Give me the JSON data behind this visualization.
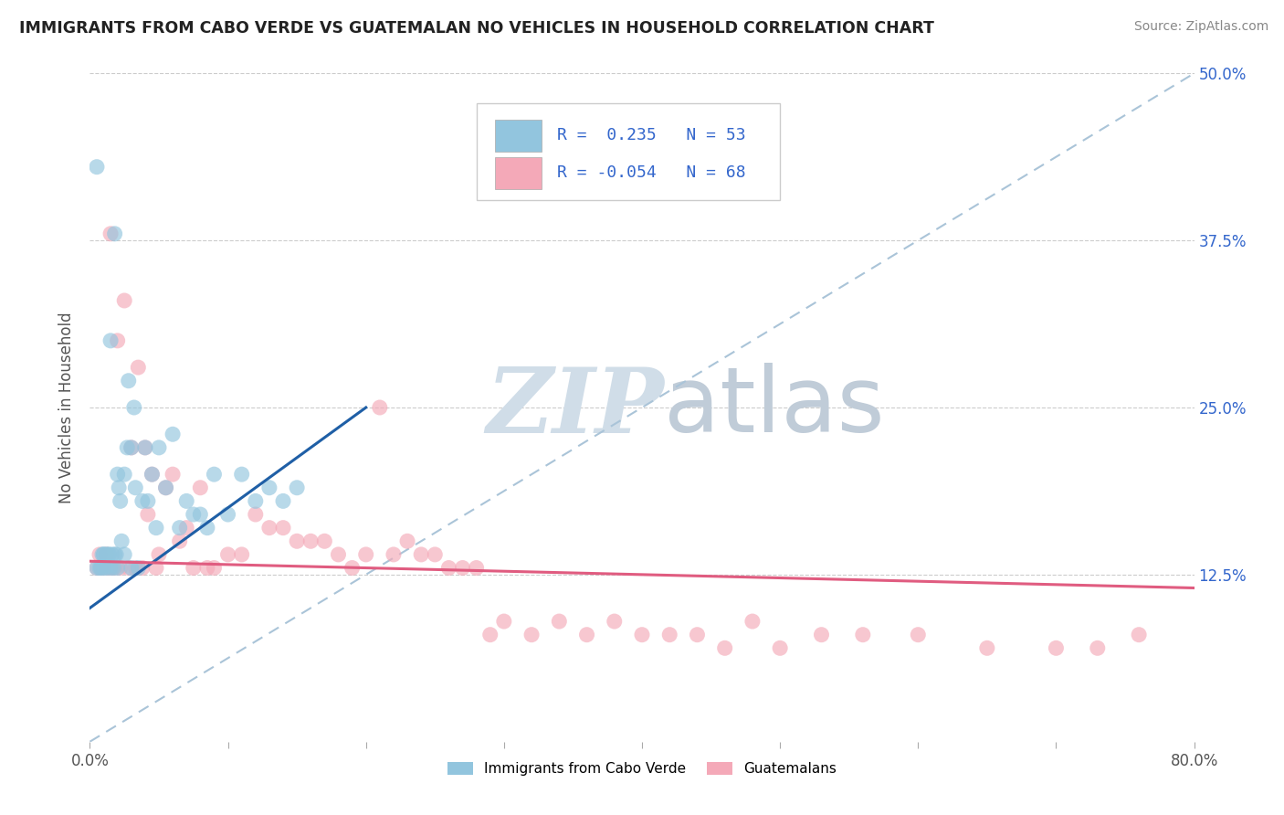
{
  "title": "IMMIGRANTS FROM CABO VERDE VS GUATEMALAN NO VEHICLES IN HOUSEHOLD CORRELATION CHART",
  "source": "Source: ZipAtlas.com",
  "ylabel": "No Vehicles in Household",
  "yticks": [
    0.0,
    0.125,
    0.25,
    0.375,
    0.5
  ],
  "ytick_labels": [
    "",
    "12.5%",
    "25.0%",
    "37.5%",
    "50.0%"
  ],
  "xlim": [
    0.0,
    0.8
  ],
  "ylim": [
    0.0,
    0.5
  ],
  "blue_R": 0.235,
  "blue_N": 53,
  "pink_R": -0.054,
  "pink_N": 68,
  "blue_color": "#92c5de",
  "pink_color": "#f4a9b8",
  "blue_line_color": "#1f5fa6",
  "pink_line_color": "#e05c80",
  "watermark_color": "#d0dde8",
  "legend_label_blue": "Immigrants from Cabo Verde",
  "legend_label_pink": "Guatemalans",
  "blue_scatter_x": [
    0.005,
    0.005,
    0.007,
    0.008,
    0.009,
    0.01,
    0.01,
    0.01,
    0.012,
    0.012,
    0.013,
    0.014,
    0.015,
    0.015,
    0.016,
    0.017,
    0.018,
    0.018,
    0.019,
    0.02,
    0.02,
    0.021,
    0.022,
    0.023,
    0.025,
    0.025,
    0.027,
    0.028,
    0.03,
    0.03,
    0.032,
    0.033,
    0.035,
    0.038,
    0.04,
    0.042,
    0.045,
    0.048,
    0.05,
    0.055,
    0.06,
    0.065,
    0.07,
    0.075,
    0.08,
    0.085,
    0.09,
    0.1,
    0.11,
    0.12,
    0.13,
    0.14,
    0.15
  ],
  "blue_scatter_y": [
    0.43,
    0.13,
    0.13,
    0.13,
    0.14,
    0.13,
    0.14,
    0.14,
    0.13,
    0.14,
    0.14,
    0.14,
    0.13,
    0.3,
    0.14,
    0.13,
    0.14,
    0.38,
    0.14,
    0.13,
    0.2,
    0.19,
    0.18,
    0.15,
    0.2,
    0.14,
    0.22,
    0.27,
    0.22,
    0.13,
    0.25,
    0.19,
    0.13,
    0.18,
    0.22,
    0.18,
    0.2,
    0.16,
    0.22,
    0.19,
    0.23,
    0.16,
    0.18,
    0.17,
    0.17,
    0.16,
    0.2,
    0.17,
    0.2,
    0.18,
    0.19,
    0.18,
    0.19
  ],
  "pink_scatter_x": [
    0.005,
    0.007,
    0.008,
    0.01,
    0.012,
    0.014,
    0.015,
    0.016,
    0.018,
    0.02,
    0.022,
    0.025,
    0.028,
    0.03,
    0.033,
    0.035,
    0.038,
    0.04,
    0.042,
    0.045,
    0.048,
    0.05,
    0.055,
    0.06,
    0.065,
    0.07,
    0.075,
    0.08,
    0.085,
    0.09,
    0.1,
    0.11,
    0.12,
    0.13,
    0.14,
    0.15,
    0.16,
    0.17,
    0.18,
    0.19,
    0.2,
    0.21,
    0.22,
    0.23,
    0.24,
    0.25,
    0.26,
    0.27,
    0.28,
    0.29,
    0.3,
    0.32,
    0.34,
    0.36,
    0.38,
    0.4,
    0.42,
    0.44,
    0.46,
    0.48,
    0.5,
    0.53,
    0.56,
    0.6,
    0.65,
    0.7,
    0.73,
    0.76
  ],
  "pink_scatter_y": [
    0.13,
    0.14,
    0.13,
    0.13,
    0.14,
    0.13,
    0.38,
    0.13,
    0.13,
    0.3,
    0.13,
    0.33,
    0.13,
    0.22,
    0.13,
    0.28,
    0.13,
    0.22,
    0.17,
    0.2,
    0.13,
    0.14,
    0.19,
    0.2,
    0.15,
    0.16,
    0.13,
    0.19,
    0.13,
    0.13,
    0.14,
    0.14,
    0.17,
    0.16,
    0.16,
    0.15,
    0.15,
    0.15,
    0.14,
    0.13,
    0.14,
    0.25,
    0.14,
    0.15,
    0.14,
    0.14,
    0.13,
    0.13,
    0.13,
    0.08,
    0.09,
    0.08,
    0.09,
    0.08,
    0.09,
    0.08,
    0.08,
    0.08,
    0.07,
    0.09,
    0.07,
    0.08,
    0.08,
    0.08,
    0.07,
    0.07,
    0.07,
    0.08
  ]
}
